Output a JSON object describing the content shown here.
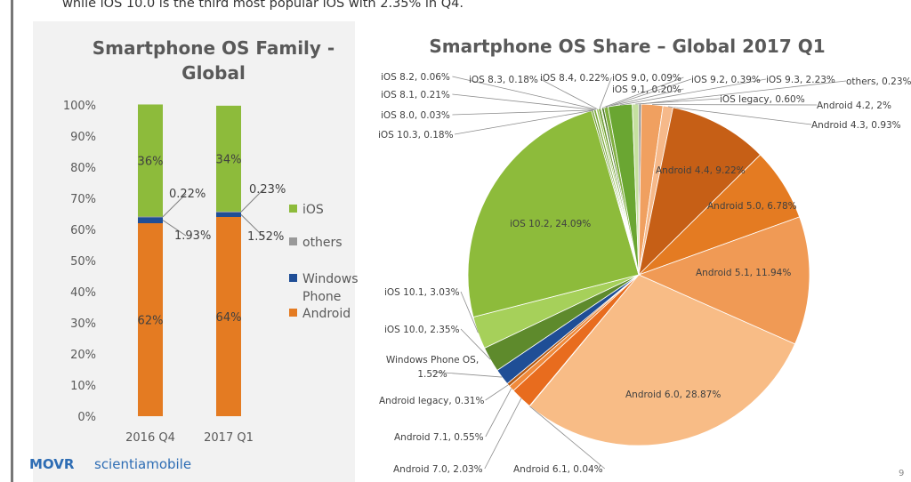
{
  "intro_text": "while iOS 10.0 is the third  most popular iOS with 2.35% in Q4.",
  "footer": {
    "brand1": "MOVR",
    "brand2": "scientiamobile",
    "page": "9"
  },
  "colors": {
    "ios": "#8dbb3b",
    "others": "#999999",
    "windows": "#1f4e96",
    "android": "#e47b22"
  },
  "chart_data": [
    {
      "type": "bar",
      "stacked": true,
      "title": "Smartphone OS Family - Global",
      "categories": [
        "2016 Q4",
        "2017 Q1"
      ],
      "ylim": [
        0,
        100
      ],
      "ytick_labels": [
        "0%",
        "10%",
        "20%",
        "30%",
        "40%",
        "50%",
        "60%",
        "70%",
        "80%",
        "90%",
        "100%"
      ],
      "series": [
        {
          "name": "Android",
          "values": [
            62,
            64
          ],
          "labels": [
            "62%",
            "64%"
          ],
          "color": "#e47b22"
        },
        {
          "name": "Windows Phone",
          "values": [
            1.93,
            1.52
          ],
          "labels": [
            "1.93%",
            "1.52%"
          ],
          "color": "#1f4e96"
        },
        {
          "name": "others",
          "values": [
            0.22,
            0.23
          ],
          "labels": [
            "0.22%",
            "0.23%"
          ],
          "color": "#999999"
        },
        {
          "name": "iOS",
          "values": [
            36,
            34
          ],
          "labels": [
            "36%",
            "34%"
          ],
          "color": "#8dbb3b"
        }
      ],
      "legend_order": [
        "iOS",
        "others",
        "Windows Phone",
        "Android"
      ],
      "legend_position": "right"
    },
    {
      "type": "pie",
      "title": "Smartphone OS Share – Global 2017 Q1",
      "slices": [
        {
          "label": "others",
          "value": 0.23,
          "text": "others, 0.23%",
          "color": "#7f7f7f"
        },
        {
          "label": "Android 4.2",
          "value": 2.0,
          "text": "Android 4.2, 2%",
          "color": "#f0a060"
        },
        {
          "label": "Android 4.3",
          "value": 0.93,
          "text": "Android 4.3, 0.93%",
          "color": "#f6b98a"
        },
        {
          "label": "Android 4.4",
          "value": 9.22,
          "text": "Android 4.4, 9.22%",
          "color": "#c65f16"
        },
        {
          "label": "Android 5.0",
          "value": 6.78,
          "text": "Android 5.0, 6.78%",
          "color": "#e47b22"
        },
        {
          "label": "Android 5.1",
          "value": 11.94,
          "text": "Android 5.1, 11.94%",
          "color": "#f09a55"
        },
        {
          "label": "Android 6.0",
          "value": 28.87,
          "text": "Android 6.0, 28.87%",
          "color": "#f8bc86"
        },
        {
          "label": "Android 6.1",
          "value": 0.04,
          "text": "Android 6.1, 0.04%",
          "color": "#d0701c"
        },
        {
          "label": "Android 7.0",
          "value": 2.03,
          "text": "Android 7.0, 2.03%",
          "color": "#e86c1e"
        },
        {
          "label": "Android 7.1",
          "value": 0.55,
          "text": "Android 7.1, 0.55%",
          "color": "#f08a3a"
        },
        {
          "label": "Android legacy",
          "value": 0.31,
          "text": "Android legacy, 0.31%",
          "color": "#b55a12"
        },
        {
          "label": "Windows Phone OS",
          "value": 1.52,
          "text": "Windows Phone OS, 1.52%",
          "color": "#1f4e96"
        },
        {
          "label": "iOS 10.0",
          "value": 2.35,
          "text": "iOS 10.0, 2.35%",
          "color": "#5e8a2c"
        },
        {
          "label": "iOS 10.1",
          "value": 3.03,
          "text": "iOS 10.1, 3.03%",
          "color": "#a6d05a"
        },
        {
          "label": "iOS 10.2",
          "value": 24.09,
          "text": "iOS 10.2, 24.09%",
          "color": "#8dbb3b"
        },
        {
          "label": "iOS 10.3",
          "value": 0.18,
          "text": "iOS 10.3, 0.18%",
          "color": "#6f9a35"
        },
        {
          "label": "iOS 8.0",
          "value": 0.03,
          "text": "iOS 8.0, 0.03%",
          "color": "#4f7a24"
        },
        {
          "label": "iOS 8.1",
          "value": 0.21,
          "text": "iOS 8.1, 0.21%",
          "color": "#7aa83a"
        },
        {
          "label": "iOS 8.2",
          "value": 0.06,
          "text": "iOS 8.2, 0.06%",
          "color": "#5e8a2c"
        },
        {
          "label": "iOS 8.3",
          "value": 0.18,
          "text": "iOS 8.3, 0.18%",
          "color": "#90bf48"
        },
        {
          "label": "iOS 8.4",
          "value": 0.22,
          "text": "iOS 8.4, 0.22%",
          "color": "#6b9a30"
        },
        {
          "label": "iOS 9.0",
          "value": 0.09,
          "text": "iOS 9.0, 0.09%",
          "color": "#a8cf6c"
        },
        {
          "label": "iOS 9.1",
          "value": 0.2,
          "text": "iOS 9.1, 0.20%",
          "color": "#4a7524"
        },
        {
          "label": "iOS 9.2",
          "value": 0.39,
          "text": "iOS 9.2, 0.39%",
          "color": "#80b040"
        },
        {
          "label": "iOS 9.3",
          "value": 2.23,
          "text": "iOS 9.3, 2.23%",
          "color": "#6aa632"
        },
        {
          "label": "iOS legacy",
          "value": 0.6,
          "text": "iOS legacy, 0.60%",
          "color": "#c5e0a0"
        }
      ]
    }
  ]
}
